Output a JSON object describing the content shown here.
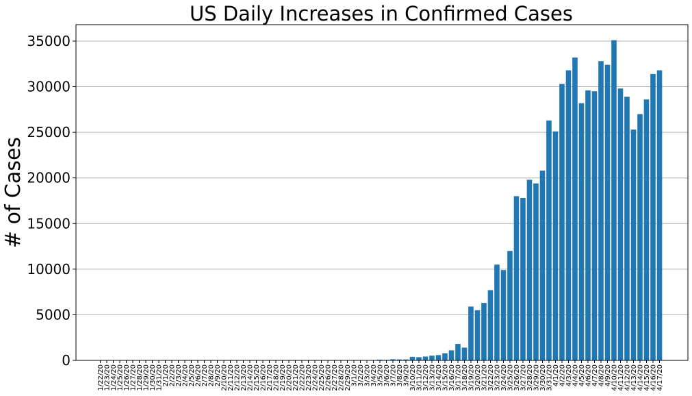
{
  "chart_data": {
    "type": "bar",
    "title": "US Daily Increases in Confirmed Cases",
    "xlabel": "",
    "ylabel": "# of Cases",
    "ylim": [
      0,
      36800
    ],
    "yticks": [
      0,
      5000,
      10000,
      15000,
      20000,
      25000,
      30000,
      35000
    ],
    "grid": "horizontal",
    "categories": [
      "1/22/20",
      "1/23/20",
      "1/24/20",
      "1/25/20",
      "1/26/20",
      "1/27/20",
      "1/28/20",
      "1/29/20",
      "1/30/20",
      "1/31/20",
      "2/1/20",
      "2/2/20",
      "2/3/20",
      "2/4/20",
      "2/5/20",
      "2/6/20",
      "2/7/20",
      "2/8/20",
      "2/9/20",
      "2/10/20",
      "2/11/20",
      "2/12/20",
      "2/13/20",
      "2/14/20",
      "2/15/20",
      "2/16/20",
      "2/17/20",
      "2/18/20",
      "2/19/20",
      "2/20/20",
      "2/21/20",
      "2/22/20",
      "2/23/20",
      "2/24/20",
      "2/25/20",
      "2/26/20",
      "2/27/20",
      "2/28/20",
      "2/29/20",
      "3/1/20",
      "3/2/20",
      "3/3/20",
      "3/4/20",
      "3/5/20",
      "3/6/20",
      "3/7/20",
      "3/8/20",
      "3/9/20",
      "3/10/20",
      "3/11/20",
      "3/12/20",
      "3/13/20",
      "3/14/20",
      "3/15/20",
      "3/16/20",
      "3/17/20",
      "3/18/20",
      "3/19/20",
      "3/20/20",
      "3/21/20",
      "3/22/20",
      "3/23/20",
      "3/24/20",
      "3/25/20",
      "3/26/20",
      "3/27/20",
      "3/28/20",
      "3/29/20",
      "3/30/20",
      "3/31/20",
      "4/1/20",
      "4/2/20",
      "4/3/20",
      "4/4/20",
      "4/5/20",
      "4/6/20",
      "4/7/20",
      "4/8/20",
      "4/9/20",
      "4/10/20",
      "4/11/20",
      "4/12/20",
      "4/13/20",
      "4/14/20",
      "4/15/20",
      "4/16/20",
      "4/17/20"
    ],
    "values": [
      0,
      1,
      0,
      1,
      0,
      0,
      0,
      0,
      0,
      1,
      1,
      1,
      0,
      0,
      1,
      0,
      0,
      0,
      0,
      1,
      0,
      0,
      2,
      0,
      0,
      0,
      0,
      0,
      0,
      0,
      2,
      0,
      0,
      0,
      0,
      0,
      1,
      1,
      8,
      7,
      13,
      25,
      30,
      79,
      56,
      120,
      100,
      103,
      385,
      350,
      420,
      520,
      580,
      780,
      1100,
      1800,
      1400,
      5900,
      5500,
      6300,
      7700,
      10500,
      9900,
      12000,
      18000,
      17800,
      19800,
      19400,
      20800,
      26300,
      25100,
      30300,
      31800,
      33200,
      28200,
      29600,
      29500,
      32800,
      32400,
      35100,
      29800,
      28900,
      25300,
      27000,
      28600,
      31400,
      31800
    ]
  }
}
